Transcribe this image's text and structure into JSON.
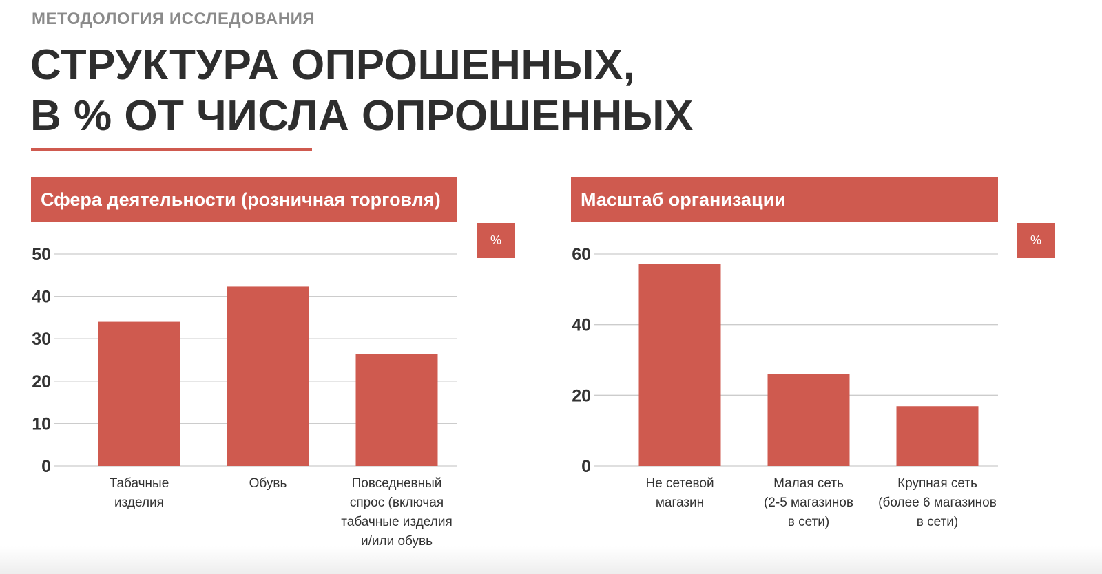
{
  "header": {
    "kicker": "МЕТОДОЛОГИЯ ИССЛЕДОВАНИЯ",
    "title_line1": "СТРУКТУРА ОПРОШЕННЫХ,",
    "title_line2": "В % ОТ ЧИСЛА ОПРОШЕННЫХ"
  },
  "colors": {
    "accent": "#cf5a4f",
    "grid": "#cccccc",
    "axis_text": "#333333"
  },
  "charts": [
    {
      "header": "Сфера деятельности (розничная торговля)",
      "unit": "%"
    },
    {
      "header": "Масштаб организации",
      "unit": "%"
    }
  ],
  "chart_data": [
    {
      "type": "bar",
      "title": "Сфера деятельности (розничная торговля)",
      "unit": "%",
      "categories": [
        [
          "Табачные",
          "изделия"
        ],
        [
          "Обувь"
        ],
        [
          "Повседневный",
          "спрос (включая",
          "табачные изделия",
          "и/или обувь"
        ]
      ],
      "values": [
        34,
        42.3,
        26.3
      ],
      "ylim": [
        0,
        50
      ],
      "yticks": [
        0,
        10,
        20,
        30,
        40,
        50
      ],
      "grid": true
    },
    {
      "type": "bar",
      "title": "Масштаб организации",
      "unit": "%",
      "categories": [
        [
          "Не сетевой",
          "магазин"
        ],
        [
          "Малая сеть",
          "(2-5 магазинов",
          "в сети)"
        ],
        [
          "Крупная сеть",
          "(более 6 магазинов",
          "в сети)"
        ]
      ],
      "values": [
        57.1,
        26.1,
        16.9
      ],
      "ylim": [
        0,
        60
      ],
      "yticks": [
        0,
        20,
        40,
        60
      ],
      "grid": true
    }
  ]
}
